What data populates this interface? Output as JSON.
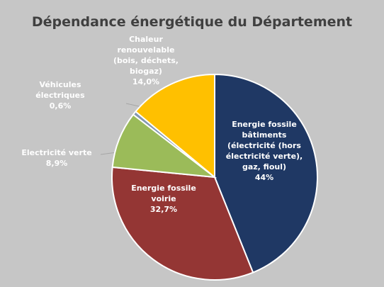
{
  "chart_data": {
    "type": "pie",
    "title": "Dépendance énergétique du Département",
    "categories": [
      "Energie fossile bâtiments (électricité (hors électricité verte), gaz, fioul)",
      "Energie fossile voirie",
      "Electricité verte",
      "Véhicules électriques",
      "Chaleur renouvelable (bois, déchets, biogaz)"
    ],
    "values": [
      44,
      32.7,
      8.9,
      0.6,
      14.0
    ],
    "value_labels": [
      "44%",
      "32,7%",
      "8,9%",
      "0,6%",
      "14,0%"
    ],
    "colors": [
      "#1f3864",
      "#943634",
      "#9bbb59",
      "#8497b0",
      "#ffc000"
    ]
  }
}
